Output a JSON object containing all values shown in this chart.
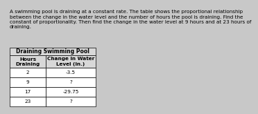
{
  "paragraph": "A swimming pool is draining at a constant rate. The table shows the proportional relationship\nbetween the change in the water level and the number of hours the pool is draining. Find the\nconstant of proportionality. Then find the change in the water level at 9 hours and at 23 hours of\ndraining.",
  "table_title": "Draining Swimming Pool",
  "col1_header": "Hours\nDraining",
  "col2_header": "Change in Water\nLevel (in.)",
  "rows": [
    [
      "2",
      "-3.5"
    ],
    [
      "9",
      "?"
    ],
    [
      "17",
      "-29.75"
    ],
    [
      "23",
      "?"
    ]
  ],
  "bg_color": "#c8c8c8",
  "table_bg": "#ffffff",
  "header_bg": "#d8d8d8",
  "text_color": "#000000",
  "para_fontsize": 5.2,
  "table_title_fontsize": 5.5,
  "header_fontsize": 5.2,
  "cell_fontsize": 5.2
}
